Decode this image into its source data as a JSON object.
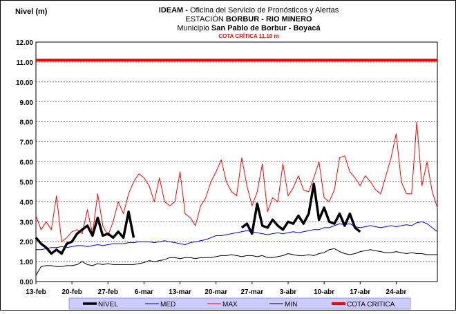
{
  "chart_data": {
    "type": "line",
    "title_org": "IDEAM -",
    "title_office": "Oficina del Servicio de Pronósticos y Alertas",
    "station_label": "ESTACIÓN",
    "station": "BORBUR  - RIO MINERO",
    "municipality_label": "Municipio",
    "municipality": "San Pablo de Borbur - Boyacá",
    "critical_note": "COTA CRÍTICA 11.10 m",
    "y_label": "Nivel (m)",
    "grid": true,
    "ylim": [
      0,
      12
    ],
    "yticks": [
      {
        "value": 0,
        "label": "0.00"
      },
      {
        "value": 1,
        "label": "1.00"
      },
      {
        "value": 2,
        "label": "2.00"
      },
      {
        "value": 3,
        "label": "3.00"
      },
      {
        "value": 4,
        "label": "4.00"
      },
      {
        "value": 5,
        "label": "5.00"
      },
      {
        "value": 6,
        "label": "6.00"
      },
      {
        "value": 7,
        "label": "7.00"
      },
      {
        "value": 8,
        "label": "8.00"
      },
      {
        "value": 9,
        "label": "9.00"
      },
      {
        "value": 10,
        "label": "10.00"
      },
      {
        "value": 11,
        "label": "11.00"
      },
      {
        "value": 12,
        "label": "12.00"
      }
    ],
    "categories": [
      "13-feb",
      null,
      null,
      null,
      null,
      null,
      null,
      "20-feb",
      null,
      null,
      null,
      null,
      null,
      null,
      "27-feb",
      null,
      null,
      null,
      null,
      null,
      null,
      "6-mar",
      null,
      null,
      null,
      null,
      null,
      null,
      "13-mar",
      null,
      null,
      null,
      null,
      null,
      null,
      "20-mar",
      null,
      null,
      null,
      null,
      null,
      null,
      "27-mar",
      null,
      null,
      null,
      null,
      null,
      null,
      "3-abr",
      null,
      null,
      null,
      null,
      null,
      null,
      "10-abr",
      null,
      null,
      null,
      null,
      null,
      null,
      "17-abr",
      null,
      null,
      null,
      null,
      null,
      null,
      "24-abr",
      null,
      null,
      null,
      null,
      null,
      null,
      null,
      null
    ],
    "series": [
      {
        "name": "NIVEL",
        "color": "#000000",
        "line_width": 3.5,
        "values": [
          2.2,
          1.9,
          1.7,
          1.4,
          1.6,
          1.4,
          1.9,
          2.0,
          2.4,
          2.6,
          2.8,
          2.3,
          3.2,
          2.3,
          2.4,
          2.2,
          2.5,
          2.2,
          3.5,
          2.2,
          null,
          null,
          null,
          null,
          null,
          null,
          null,
          null,
          null,
          null,
          null,
          null,
          null,
          null,
          null,
          null,
          null,
          null,
          null,
          null,
          2.7,
          2.9,
          2.4,
          3.9,
          2.8,
          2.7,
          3.1,
          2.8,
          2.6,
          3.0,
          2.9,
          3.3,
          2.9,
          3.4,
          4.9,
          3.1,
          3.7,
          3.0,
          2.9,
          3.4,
          2.8,
          3.4,
          2.7,
          2.5,
          null,
          null,
          null,
          null,
          null,
          null,
          null,
          null,
          null,
          null,
          null,
          null,
          null,
          null,
          null
        ]
      },
      {
        "name": "MED",
        "color": "#0000ff",
        "line_width": 1,
        "values": [
          1.6,
          1.6,
          1.65,
          1.7,
          1.7,
          1.75,
          1.7,
          1.75,
          1.8,
          1.8,
          1.75,
          1.8,
          1.85,
          1.8,
          1.85,
          1.9,
          1.9,
          1.9,
          1.95,
          1.95,
          2.0,
          2.0,
          2.0,
          1.95,
          2.0,
          2.05,
          2.0,
          1.95,
          1.9,
          1.85,
          1.95,
          2.0,
          2.05,
          2.1,
          2.2,
          2.3,
          2.3,
          2.35,
          2.4,
          2.45,
          2.5,
          2.55,
          2.5,
          2.45,
          2.4,
          2.35,
          2.4,
          2.45,
          2.4,
          2.45,
          2.5,
          2.45,
          2.5,
          2.55,
          2.6,
          2.6,
          2.7,
          2.7,
          2.8,
          2.9,
          2.85,
          2.9,
          2.75,
          2.7,
          2.75,
          2.8,
          2.75,
          2.7,
          2.75,
          2.8,
          2.75,
          2.8,
          2.85,
          2.8,
          2.95,
          3.0,
          2.9,
          2.7,
          2.5
        ]
      },
      {
        "name": "MAX",
        "color": "#ff0000",
        "line_width": 1,
        "values": [
          3.3,
          2.6,
          3.0,
          2.6,
          4.3,
          2.0,
          2.2,
          2.5,
          2.6,
          2.4,
          3.6,
          2.4,
          4.4,
          2.8,
          2.3,
          3.0,
          4.0,
          3.4,
          4.4,
          5.0,
          5.4,
          5.2,
          4.8,
          4.0,
          5.2,
          4.0,
          3.8,
          4.0,
          5.5,
          3.4,
          3.2,
          2.8,
          3.8,
          4.2,
          5.0,
          5.5,
          6.1,
          5.0,
          4.5,
          4.3,
          6.2,
          4.8,
          3.8,
          4.5,
          5.9,
          3.5,
          4.2,
          4.0,
          5.9,
          4.3,
          4.7,
          5.3,
          4.6,
          4.5,
          5.2,
          6.0,
          4.2,
          4.0,
          4.6,
          6.2,
          6.3,
          5.5,
          5.2,
          4.8,
          5.3,
          5.0,
          4.6,
          4.4,
          5.3,
          6.2,
          7.4,
          5.0,
          4.4,
          4.4,
          8.0,
          4.8,
          6.0,
          4.5,
          3.7
        ]
      },
      {
        "name": "MIN",
        "color": "#000000",
        "line_width": 1,
        "values": [
          0.3,
          0.75,
          0.8,
          0.8,
          0.75,
          0.75,
          0.8,
          0.8,
          0.85,
          1.0,
          0.85,
          0.8,
          0.9,
          0.85,
          0.9,
          0.85,
          0.85,
          0.85,
          0.85,
          0.85,
          0.9,
          0.95,
          1.05,
          1.0,
          1.05,
          1.1,
          1.2,
          1.2,
          1.15,
          1.2,
          1.2,
          1.15,
          1.2,
          1.2,
          1.2,
          1.25,
          1.3,
          1.3,
          1.35,
          1.3,
          1.25,
          1.3,
          1.3,
          1.25,
          1.3,
          1.2,
          1.2,
          1.25,
          1.3,
          1.4,
          1.35,
          1.3,
          1.3,
          1.35,
          1.3,
          1.4,
          1.45,
          1.6,
          1.65,
          1.5,
          1.4,
          1.35,
          1.4,
          1.5,
          1.55,
          1.6,
          1.55,
          1.5,
          1.45,
          1.45,
          1.5,
          1.45,
          1.4,
          1.45,
          1.4,
          1.4,
          1.35,
          1.35,
          1.35
        ]
      },
      {
        "name": "COTA CRITICA",
        "color": "#ff0000",
        "line_width": 4,
        "values": [
          11.1,
          11.1,
          11.1,
          11.1,
          11.1,
          11.1,
          11.1,
          11.1,
          11.1,
          11.1,
          11.1,
          11.1,
          11.1,
          11.1,
          11.1,
          11.1,
          11.1,
          11.1,
          11.1,
          11.1,
          11.1,
          11.1,
          11.1,
          11.1,
          11.1,
          11.1,
          11.1,
          11.1,
          11.1,
          11.1,
          11.1,
          11.1,
          11.1,
          11.1,
          11.1,
          11.1,
          11.1,
          11.1,
          11.1,
          11.1,
          11.1,
          11.1,
          11.1,
          11.1,
          11.1,
          11.1,
          11.1,
          11.1,
          11.1,
          11.1,
          11.1,
          11.1,
          11.1,
          11.1,
          11.1,
          11.1,
          11.1,
          11.1,
          11.1,
          11.1,
          11.1,
          11.1,
          11.1,
          11.1,
          11.1,
          11.1,
          11.1,
          11.1,
          11.1,
          11.1,
          11.1,
          11.1,
          11.1,
          11.1,
          11.1,
          11.1,
          11.1,
          11.1,
          11.1
        ]
      }
    ]
  }
}
